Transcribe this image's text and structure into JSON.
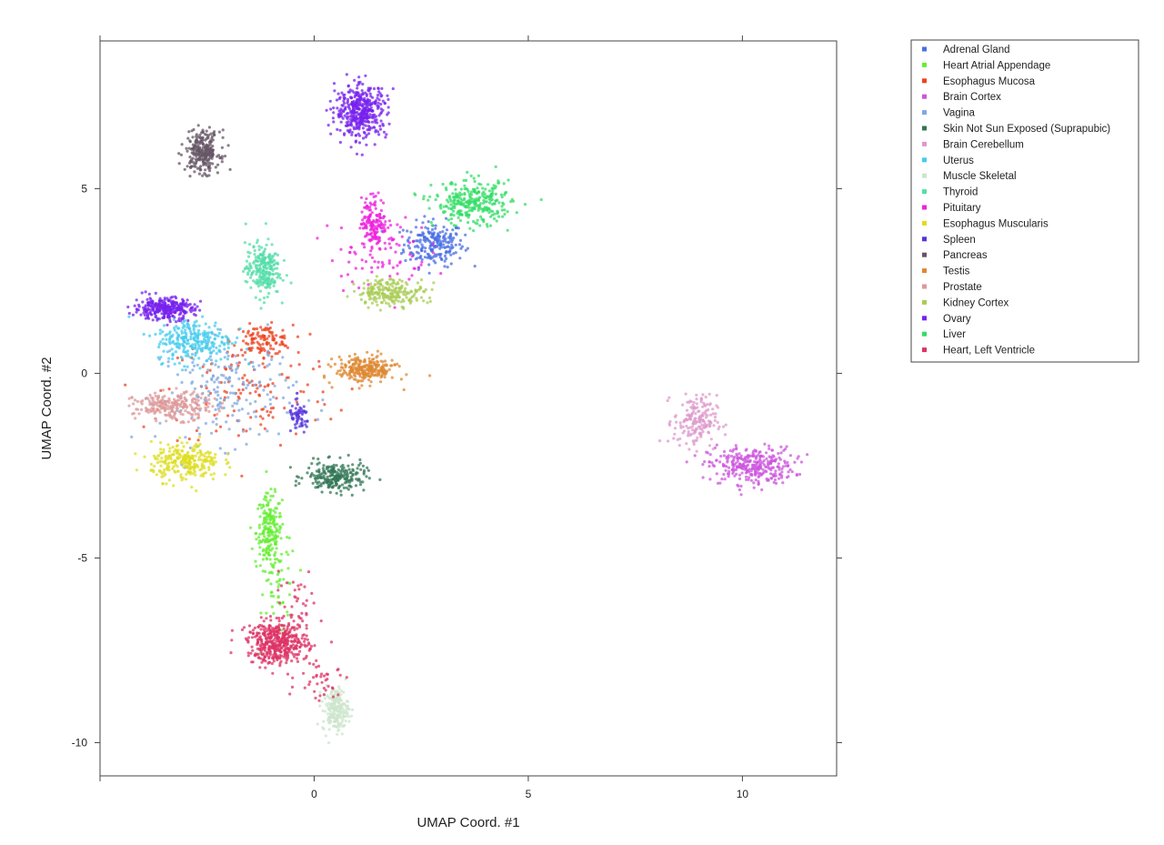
{
  "chart_data": {
    "type": "scatter",
    "title": "",
    "xlabel": "UMAP Coord. #1",
    "ylabel": "UMAP Coord. #2",
    "xlim": [
      -5,
      12.2
    ],
    "ylim": [
      -10.9,
      9
    ],
    "xticks": [
      0,
      5,
      10
    ],
    "yticks": [
      5,
      0,
      -5,
      -10
    ],
    "xtick_labels": [
      "0",
      "5",
      "10"
    ],
    "ytick_labels": [
      "5",
      "0",
      "-5",
      "-10"
    ],
    "grid": false,
    "legend_placement": "outside-right",
    "series": [
      {
        "name": "Adrenal Gland",
        "color": "#4a6fe3",
        "clusters": [
          {
            "cx": 2.8,
            "cy": 3.5,
            "sx": 0.35,
            "sy": 0.3,
            "n": 220
          }
        ]
      },
      {
        "name": "Heart Atrial Appendage",
        "color": "#66ee33",
        "clusters": [
          {
            "cx": -1.05,
            "cy": -4.3,
            "sx": 0.15,
            "sy": 0.5,
            "n": 200
          },
          {
            "cx": -0.8,
            "cy": -5.8,
            "sx": 0.2,
            "sy": 0.7,
            "n": 50
          }
        ]
      },
      {
        "name": "Esophagus Mucosa",
        "color": "#ee4422",
        "clusters": [
          {
            "cx": -1.2,
            "cy": 0.9,
            "sx": 0.35,
            "sy": 0.2,
            "n": 120
          },
          {
            "cx": -1.5,
            "cy": -0.5,
            "sx": 1.0,
            "sy": 0.8,
            "n": 120
          }
        ]
      },
      {
        "name": "Brain Cortex",
        "color": "#cc55dd",
        "clusters": [
          {
            "cx": 10.2,
            "cy": -2.5,
            "sx": 0.5,
            "sy": 0.25,
            "n": 320
          }
        ]
      },
      {
        "name": "Vagina",
        "color": "#7fa8e0",
        "clusters": [
          {
            "cx": -2.0,
            "cy": -0.5,
            "sx": 0.8,
            "sy": 0.7,
            "n": 200
          }
        ]
      },
      {
        "name": "Skin Not Sun Exposed (Suprapubic)",
        "color": "#337755",
        "clusters": [
          {
            "cx": 0.5,
            "cy": -2.8,
            "sx": 0.35,
            "sy": 0.2,
            "n": 230
          }
        ]
      },
      {
        "name": "Brain Cerebellum",
        "color": "#dd99cc",
        "clusters": [
          {
            "cx": 8.9,
            "cy": -1.3,
            "sx": 0.25,
            "sy": 0.35,
            "n": 180
          }
        ]
      },
      {
        "name": "Uterus",
        "color": "#44ccee",
        "clusters": [
          {
            "cx": -2.8,
            "cy": 0.9,
            "sx": 0.45,
            "sy": 0.3,
            "n": 260
          }
        ]
      },
      {
        "name": "Muscle Skeletal",
        "color": "#cce5cc",
        "clusters": [
          {
            "cx": 0.5,
            "cy": -9.1,
            "sx": 0.15,
            "sy": 0.3,
            "n": 200
          }
        ]
      },
      {
        "name": "Thyroid",
        "color": "#55ddaa",
        "clusters": [
          {
            "cx": -1.2,
            "cy": 2.8,
            "sx": 0.2,
            "sy": 0.35,
            "n": 240
          }
        ]
      },
      {
        "name": "Pituitary",
        "color": "#ee22dd",
        "clusters": [
          {
            "cx": 1.4,
            "cy": 4.1,
            "sx": 0.15,
            "sy": 0.35,
            "n": 150
          },
          {
            "cx": 1.5,
            "cy": 3.3,
            "sx": 0.6,
            "sy": 0.5,
            "n": 80
          }
        ]
      },
      {
        "name": "Esophagus Muscularis",
        "color": "#dddd22",
        "clusters": [
          {
            "cx": -3.0,
            "cy": -2.4,
            "sx": 0.4,
            "sy": 0.25,
            "n": 260
          }
        ]
      },
      {
        "name": "Spleen",
        "color": "#5533dd",
        "clusters": [
          {
            "cx": -0.35,
            "cy": -1.2,
            "sx": 0.12,
            "sy": 0.2,
            "n": 60
          }
        ]
      },
      {
        "name": "Pancreas",
        "color": "#665566",
        "clusters": [
          {
            "cx": -2.6,
            "cy": 6.0,
            "sx": 0.2,
            "sy": 0.28,
            "n": 260
          }
        ]
      },
      {
        "name": "Testis",
        "color": "#dd8833",
        "clusters": [
          {
            "cx": 1.2,
            "cy": 0.1,
            "sx": 0.35,
            "sy": 0.18,
            "n": 260
          }
        ]
      },
      {
        "name": "Prostate",
        "color": "#dd9999",
        "clusters": [
          {
            "cx": -3.3,
            "cy": -0.9,
            "sx": 0.45,
            "sy": 0.18,
            "n": 240
          }
        ]
      },
      {
        "name": "Kidney Cortex",
        "color": "#aacc55",
        "clusters": [
          {
            "cx": 1.8,
            "cy": 2.2,
            "sx": 0.4,
            "sy": 0.18,
            "n": 220
          }
        ]
      },
      {
        "name": "Ovary",
        "color": "#7722ee",
        "clusters": [
          {
            "cx": -3.5,
            "cy": 1.75,
            "sx": 0.35,
            "sy": 0.15,
            "n": 300
          },
          {
            "cx": 1.1,
            "cy": 7.1,
            "sx": 0.3,
            "sy": 0.35,
            "n": 420
          }
        ]
      },
      {
        "name": "Liver",
        "color": "#33dd66",
        "clusters": [
          {
            "cx": 3.7,
            "cy": 4.6,
            "sx": 0.45,
            "sy": 0.3,
            "n": 300
          }
        ]
      },
      {
        "name": "Heart, Left Ventricle",
        "color": "#dd3366",
        "clusters": [
          {
            "cx": -0.85,
            "cy": -7.3,
            "sx": 0.35,
            "sy": 0.28,
            "n": 440
          },
          {
            "cx": -0.5,
            "cy": -6.3,
            "sx": 0.3,
            "sy": 0.4,
            "n": 40
          },
          {
            "cx": 0.2,
            "cy": -8.3,
            "sx": 0.3,
            "sy": 0.3,
            "n": 40
          }
        ]
      }
    ]
  }
}
